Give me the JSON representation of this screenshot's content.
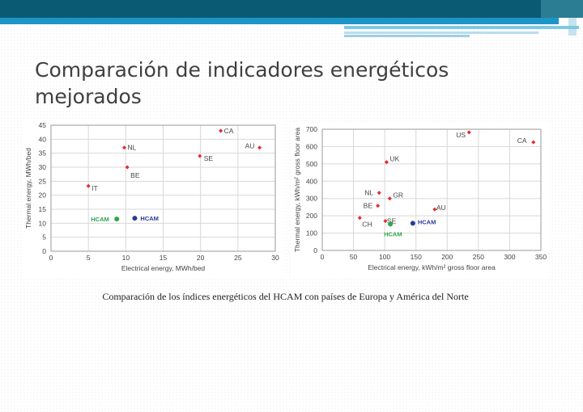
{
  "slide": {
    "title_line1": "Comparación de indicadores energéticos",
    "title_line2": "mejorados",
    "caption": "Comparación de los índices energéticos del HCAM con países de Europa y América del Norte"
  },
  "chart_data": [
    {
      "type": "scatter",
      "title": "",
      "xlabel": "Electrical energy, MWh/bed",
      "ylabel": "Thermal energy, MWh/bed",
      "xlim": [
        0,
        30
      ],
      "ylim": [
        0,
        45
      ],
      "xticks": [
        0,
        5,
        10,
        15,
        20,
        25,
        30
      ],
      "yticks": [
        0,
        5,
        10,
        15,
        20,
        25,
        30,
        35,
        40,
        45
      ],
      "grid": true,
      "points": [
        {
          "label": "CA",
          "x": 22.7,
          "y": 43,
          "color": "#e03030",
          "group": "country"
        },
        {
          "label": "NL",
          "x": 9.8,
          "y": 37,
          "color": "#e03030",
          "group": "country"
        },
        {
          "label": "AU",
          "x": 27.9,
          "y": 37,
          "color": "#e03030",
          "group": "country"
        },
        {
          "label": "SE",
          "x": 19.9,
          "y": 34,
          "color": "#e03030",
          "group": "country"
        },
        {
          "label": "BE",
          "x": 10.2,
          "y": 30,
          "color": "#e03030",
          "group": "country"
        },
        {
          "label": "IT",
          "x": 5.0,
          "y": 23.3,
          "color": "#e03030",
          "group": "country"
        },
        {
          "label": "HCAM",
          "x": 8.8,
          "y": 11.5,
          "color": "#2aa84a",
          "group": "hcam"
        },
        {
          "label": "HCAM",
          "x": 11.2,
          "y": 11.8,
          "color": "#2b3a9b",
          "group": "hcam"
        }
      ]
    },
    {
      "type": "scatter",
      "title": "",
      "xlabel": "Electrical energy, kWh/m² gross floor area",
      "ylabel": "Thermal energy, kWh/m² gross floor area",
      "xlim": [
        0,
        350
      ],
      "ylim": [
        0,
        700
      ],
      "xticks": [
        0,
        50,
        100,
        150,
        200,
        250,
        300,
        350
      ],
      "yticks": [
        0,
        100,
        200,
        300,
        400,
        500,
        600,
        700
      ],
      "grid": true,
      "points": [
        {
          "label": "US",
          "x": 235,
          "y": 682,
          "color": "#e03030",
          "group": "country"
        },
        {
          "label": "CA",
          "x": 338,
          "y": 625,
          "color": "#e03030",
          "group": "country"
        },
        {
          "label": "UK",
          "x": 103,
          "y": 510,
          "color": "#e03030",
          "group": "country"
        },
        {
          "label": "NL",
          "x": 91,
          "y": 333,
          "color": "#e03030",
          "group": "country"
        },
        {
          "label": "GR",
          "x": 108,
          "y": 300,
          "color": "#e03030",
          "group": "country"
        },
        {
          "label": "BE",
          "x": 89,
          "y": 258,
          "color": "#e03030",
          "group": "country"
        },
        {
          "label": "AU",
          "x": 180,
          "y": 237,
          "color": "#e03030",
          "group": "country"
        },
        {
          "label": "CH",
          "x": 60,
          "y": 188,
          "color": "#e03030",
          "group": "country"
        },
        {
          "label": "SE",
          "x": 101,
          "y": 170,
          "color": "#e03030",
          "group": "country"
        },
        {
          "label": "HCAM",
          "x": 109,
          "y": 152,
          "color": "#2aa84a",
          "group": "hcam"
        },
        {
          "label": "HCAM",
          "x": 145,
          "y": 157,
          "color": "#2b3a9b",
          "group": "hcam"
        }
      ]
    }
  ]
}
